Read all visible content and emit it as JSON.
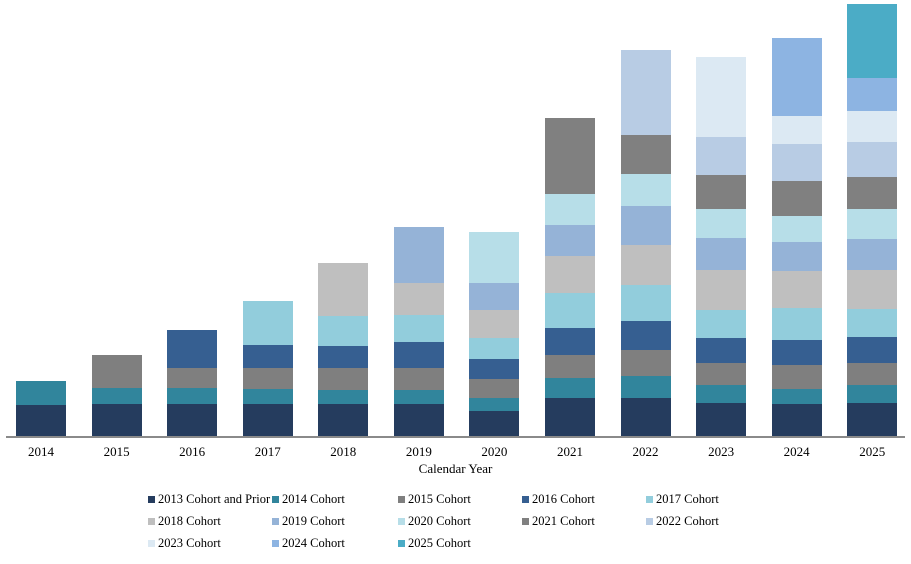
{
  "page": {
    "background": "#FFFFFF"
  },
  "chart_data": {
    "type": "stacked-bar",
    "title": "",
    "xlabel": "Calendar Year",
    "ylabel": "",
    "y_axis_visible": false,
    "grid": false,
    "legend_position": "bottom",
    "legend_columns": 5,
    "x_categories": [
      "2014",
      "2015",
      "2016",
      "2017",
      "2018",
      "2019",
      "2020",
      "2021",
      "2022",
      "2023",
      "2024",
      "2025"
    ],
    "value_unit": "px (no y-axis scale shown)",
    "bar_totals": [
      56,
      82,
      107,
      136,
      174,
      210,
      205,
      319,
      387,
      380,
      399,
      433
    ],
    "series": [
      {
        "name": "2013 Cohort and Prior",
        "color": "#253C5E",
        "values": [
          32,
          33,
          33,
          33,
          33,
          33,
          26,
          39,
          39,
          34,
          33,
          34
        ]
      },
      {
        "name": "2014 Cohort",
        "color": "#31859C",
        "values": [
          24,
          16,
          16,
          15,
          14,
          14,
          13,
          20,
          22,
          18,
          15,
          18
        ]
      },
      {
        "name": "2015 Cohort",
        "color": "#7F7F7F",
        "values": [
          0,
          33,
          20,
          21,
          22,
          22,
          19,
          23,
          26,
          22,
          24,
          22
        ]
      },
      {
        "name": "2016 Cohort",
        "color": "#365F91",
        "values": [
          0,
          0,
          38,
          23,
          22,
          26,
          20,
          27,
          29,
          25,
          25,
          26
        ]
      },
      {
        "name": "2017 Cohort",
        "color": "#92CDDC",
        "values": [
          0,
          0,
          0,
          44,
          30,
          27,
          21,
          35,
          36,
          28,
          32,
          28
        ]
      },
      {
        "name": "2018 Cohort",
        "color": "#BFBFBF",
        "values": [
          0,
          0,
          0,
          0,
          53,
          32,
          28,
          37,
          40,
          40,
          37,
          39
        ]
      },
      {
        "name": "2019 Cohort",
        "color": "#95B3D7",
        "values": [
          0,
          0,
          0,
          0,
          0,
          56,
          27,
          31,
          39,
          32,
          29,
          31
        ]
      },
      {
        "name": "2020 Cohort",
        "color": "#B7DEE8",
        "values": [
          0,
          0,
          0,
          0,
          0,
          0,
          51,
          31,
          32,
          29,
          26,
          30
        ]
      },
      {
        "name": "2021 Cohort",
        "color": "#808080",
        "values": [
          0,
          0,
          0,
          0,
          0,
          0,
          0,
          76,
          39,
          34,
          35,
          32
        ]
      },
      {
        "name": "2022 Cohort",
        "color": "#B8CCE4",
        "values": [
          0,
          0,
          0,
          0,
          0,
          0,
          0,
          0,
          85,
          38,
          37,
          35
        ]
      },
      {
        "name": "2023 Cohort",
        "color": "#DCE9F3",
        "values": [
          0,
          0,
          0,
          0,
          0,
          0,
          0,
          0,
          0,
          80,
          28,
          31
        ]
      },
      {
        "name": "2024 Cohort",
        "color": "#8DB4E2",
        "values": [
          0,
          0,
          0,
          0,
          0,
          0,
          0,
          0,
          0,
          0,
          78,
          33
        ]
      },
      {
        "name": "2025 Cohort",
        "color": "#4BACC6",
        "values": [
          0,
          0,
          0,
          0,
          0,
          0,
          0,
          0,
          0,
          0,
          0,
          74
        ]
      }
    ]
  }
}
